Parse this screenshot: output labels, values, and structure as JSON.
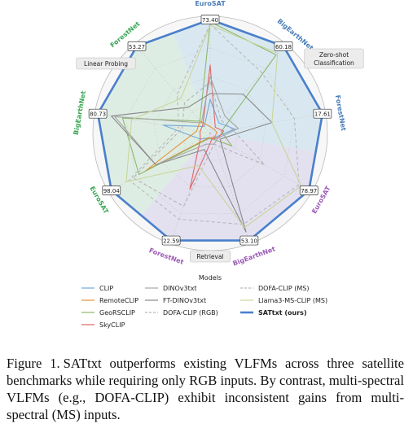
{
  "chart_data": {
    "type": "radar",
    "axes": [
      {
        "dataset": "EuroSAT",
        "value_label": "73.40",
        "color": "#4a7db8",
        "task": "Zero-shot Classification"
      },
      {
        "dataset": "BigEarthNet",
        "value_label": "60.18",
        "color": "#4a7db8",
        "task": "Zero-shot Classification"
      },
      {
        "dataset": "ForestNet",
        "value_label": "17.61",
        "color": "#4a7db8",
        "task": "Zero-shot Classification"
      },
      {
        "dataset": "EuroSAT",
        "value_label": "78.97",
        "color": "#9b59b6",
        "task": "Retrieval"
      },
      {
        "dataset": "BigEarthNet",
        "value_label": "53.10",
        "color": "#9b59b6",
        "task": "Retrieval"
      },
      {
        "dataset": "ForestNet",
        "value_label": "22.59",
        "color": "#9b59b6",
        "task": "Retrieval"
      },
      {
        "dataset": "EuroSAT",
        "value_label": "98.04",
        "color": "#3aa655",
        "task": "Linear Probing"
      },
      {
        "dataset": "BigEarthNet",
        "value_label": "80.73",
        "color": "#3aa655",
        "task": "Linear Probing"
      },
      {
        "dataset": "ForestNet",
        "value_label": "53.27",
        "color": "#3aa655",
        "task": "Linear Probing"
      }
    ],
    "task_labels": [
      "Zero-shot\nClassification",
      "Retrieval",
      "Linear Probing"
    ],
    "scale": "normalized per axis, 0 to 1 (best = 1)",
    "series": [
      {
        "name": "CLIP",
        "color": "#6fa8dc",
        "dash": "solid",
        "values": [
          0.3,
          0.12,
          0.22,
          0.06,
          0.05,
          0.04,
          0.1,
          0.42,
          0.08
        ]
      },
      {
        "name": "RemoteCLIP",
        "color": "#e69138",
        "dash": "solid",
        "values": [
          0.06,
          0.05,
          0.06,
          0.05,
          0.04,
          0.04,
          0.65,
          0.12,
          0.14
        ]
      },
      {
        "name": "GeoRSCLIP",
        "color": "#8fb86b",
        "dash": "solid",
        "values": [
          0.98,
          0.9,
          0.1,
          0.22,
          0.05,
          0.05,
          0.72,
          0.78,
          0.14
        ]
      },
      {
        "name": "SkyCLIP",
        "color": "#e06666",
        "dash": "solid",
        "values": [
          0.6,
          0.07,
          0.12,
          0.08,
          0.05,
          0.52,
          0.1,
          0.09,
          0.1
        ]
      },
      {
        "name": "DINOv3txt",
        "color": "#a6a6a6",
        "dash": "solid",
        "values": [
          0.5,
          0.2,
          0.25,
          0.08,
          0.1,
          0.1,
          0.55,
          0.85,
          0.12
        ]
      },
      {
        "name": "FT-DINOv3txt",
        "color": "#888888",
        "dash": "solid",
        "values": [
          0.35,
          0.45,
          0.55,
          0.1,
          0.92,
          0.15,
          0.55,
          0.88,
          0.3
        ]
      },
      {
        "name": "DOFA-CLIP (RGB)",
        "color": "#b4b4b4",
        "dash": "dashed",
        "values": [
          0.45,
          0.15,
          0.2,
          0.55,
          0.1,
          0.68,
          0.78,
          0.25,
          0.35
        ]
      },
      {
        "name": "DOFA-CLIP (MS)",
        "color": "#b9b9b9",
        "dash": "dashed",
        "values": [
          0.96,
          0.7,
          0.75,
          0.9,
          0.85,
          0.8,
          0.82,
          0.28,
          0.45
        ]
      },
      {
        "name": "Llama3-MS-CLIP (MS)",
        "color": "#c8d699",
        "dash": "solid",
        "values": [
          0.95,
          0.92,
          0.55,
          0.92,
          0.88,
          0.3,
          0.85,
          0.7,
          0.4
        ]
      },
      {
        "name": "SATtxt (ours)",
        "color": "#4a7fcb",
        "dash": "solid",
        "bold": true,
        "values": [
          1,
          1,
          1,
          1,
          1,
          1,
          1,
          1,
          1
        ]
      }
    ],
    "legend": {
      "title": "Models",
      "placement": "bottom",
      "columns": 3
    }
  },
  "caption": {
    "label": "Figure 1.",
    "text": "SATtxt outperforms existing VLFMs across three satellite benchmarks while requiring only RGB inputs. By contrast, multi-spectral VLFMs (e.g., DOFA-CLIP) exhibit inconsistent gains from multi-spectral (MS) inputs."
  }
}
